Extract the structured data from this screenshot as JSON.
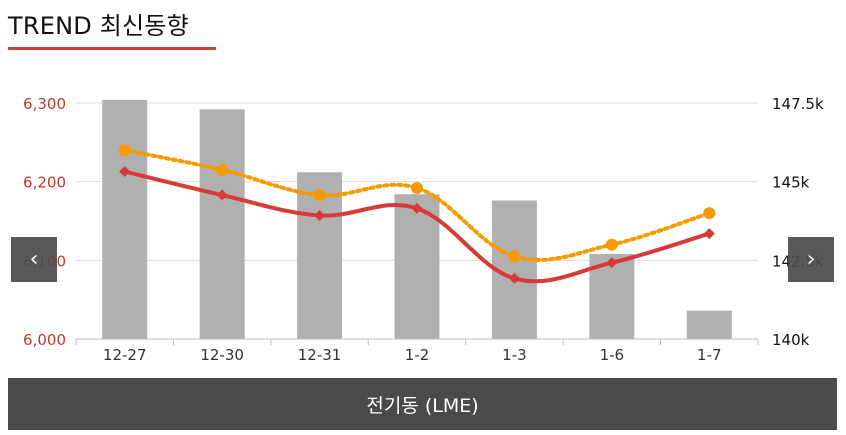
{
  "title": "TREND 최신동향",
  "nav": {
    "prev_glyph": "‹",
    "next_glyph": "›"
  },
  "footer_label": "전기동 (LME)",
  "colors": {
    "accent": "#d23a3a",
    "bar": "#b0b0b0",
    "line_red": "#d83a3a",
    "line_orange": "#f59a00",
    "footer_bg": "#4a4a4a",
    "nav_bg": "#4d4d4d"
  },
  "icons": {
    "prev": "chevron-left-icon",
    "next": "chevron-right-icon"
  },
  "chart_data": {
    "type": "bar",
    "categories": [
      "12-27",
      "12-30",
      "12-31",
      "1-2",
      "1-3",
      "1-6",
      "1-7"
    ],
    "bars": {
      "axis": "right",
      "values": [
        147.6,
        147.3,
        145.3,
        144.6,
        144.4,
        142.7,
        140.9
      ]
    },
    "lines": [
      {
        "axis": "left",
        "style": "solid",
        "marker": "diamond",
        "color": "#d83a3a",
        "values": [
          6213,
          6183,
          6157,
          6166,
          6077,
          6097,
          6134
        ]
      },
      {
        "axis": "left",
        "style": "dotted",
        "marker": "circle",
        "color": "#f59a00",
        "values": [
          6240,
          6215,
          6183,
          6192,
          6105,
          6120,
          6160
        ]
      }
    ],
    "left_axis": {
      "ticks": [
        "6,000",
        "6,100",
        "6,200",
        "6,300"
      ],
      "min": 6000,
      "max": 6300
    },
    "right_axis": {
      "ticks": [
        "140k",
        "142.5k",
        "145k",
        "147.5k"
      ],
      "min": 140,
      "max": 147.5
    },
    "grid": true
  }
}
